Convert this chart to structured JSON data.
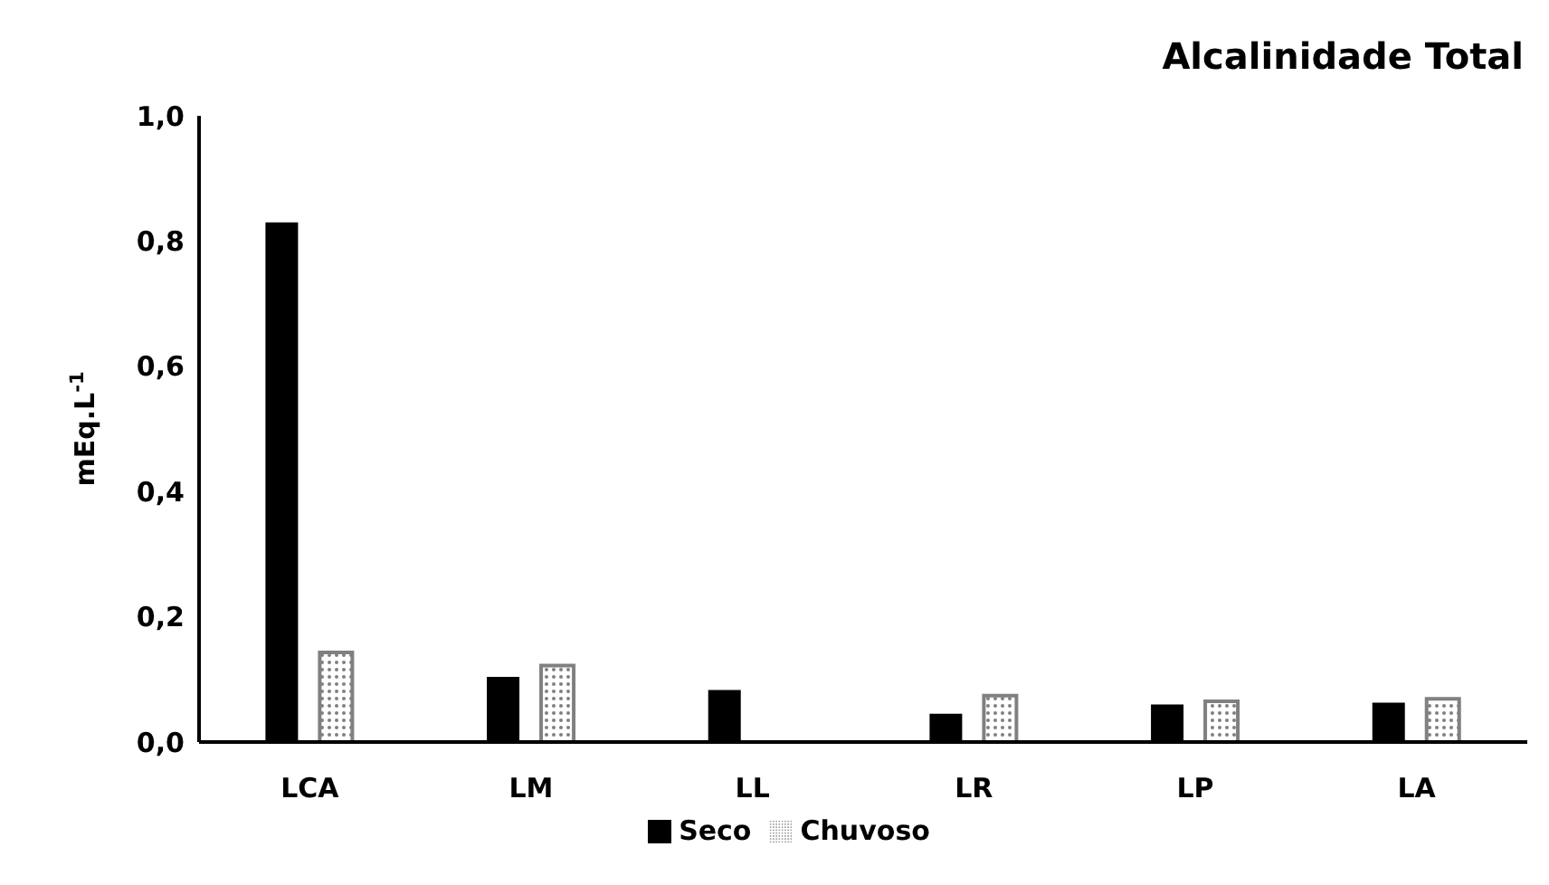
{
  "chart_data": {
    "type": "bar",
    "title": "Alcalinidade Total",
    "ylabel": "mEq.L$^{-1}$",
    "categories": [
      "LCA",
      "LM",
      "LL",
      "LR",
      "LP",
      "LA"
    ],
    "series": [
      {
        "name": "Seco",
        "color": "#000000",
        "values": [
          0.83,
          0.104,
          0.083,
          0.045,
          0.06,
          0.063
        ]
      },
      {
        "name": "Chuvoso",
        "color": "#808080",
        "values": [
          0.143,
          0.122,
          null,
          0.074,
          0.065,
          0.069
        ]
      }
    ],
    "ylim": [
      0,
      1
    ],
    "yticks": [
      {
        "value": 0,
        "label": "0,0"
      },
      {
        "value": 0.2,
        "label": "0,2"
      },
      {
        "value": 0.4,
        "label": "0,4"
      },
      {
        "value": 0.6,
        "label": "0,6"
      },
      {
        "value": 0.8,
        "label": "0,8"
      },
      {
        "value": 1,
        "label": "1,0"
      }
    ],
    "grid": false,
    "legend": "bottom"
  }
}
